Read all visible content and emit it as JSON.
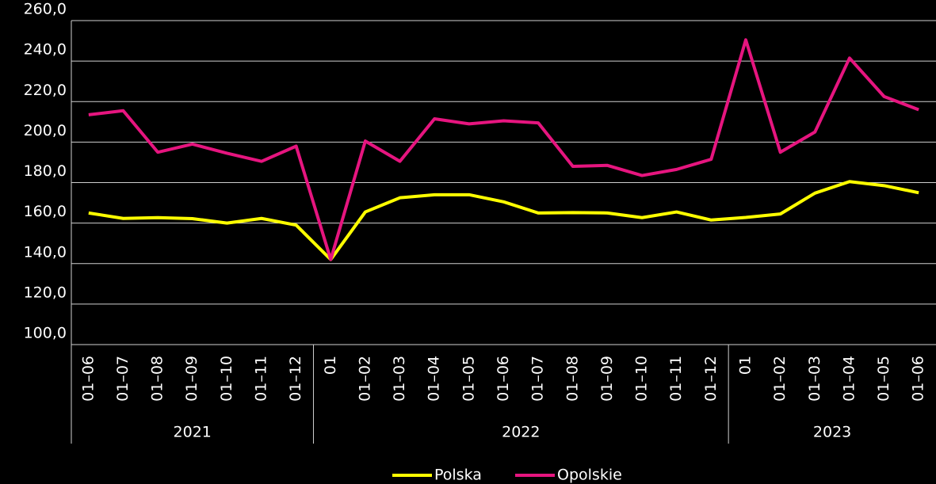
{
  "chart_data": {
    "type": "line",
    "category_groups": [
      {
        "label": "2021",
        "categories": [
          "01–06",
          "01–07",
          "01–08",
          "01–09",
          "01–10",
          "01–11",
          "01–12"
        ]
      },
      {
        "label": "2022",
        "categories": [
          "01",
          "01–02",
          "01–03",
          "01–04",
          "01–05",
          "01–06",
          "01–07",
          "01–08",
          "01–09",
          "01–10",
          "01–11",
          "01–12"
        ]
      },
      {
        "label": "2023",
        "categories": [
          "01",
          "01–02",
          "01–03",
          "01–04",
          "01–05",
          "01–06"
        ]
      }
    ],
    "series": [
      {
        "name": "Polska",
        "color": "#ffff00",
        "values": [
          165,
          162.3,
          162.7,
          162.2,
          160,
          162.3,
          159,
          142,
          165.5,
          172.5,
          174,
          174,
          170.5,
          165,
          165.2,
          165,
          162.7,
          165.5,
          161.5,
          162.8,
          164.5,
          174.8,
          180.5,
          178.5,
          175
        ]
      },
      {
        "name": "Opolskie",
        "color": "#e6157f",
        "values": [
          213.5,
          215.5,
          195,
          199,
          194.5,
          190.5,
          198,
          142,
          200.5,
          190.5,
          211.5,
          209,
          210.5,
          209.5,
          188,
          188.5,
          183.5,
          186.5,
          191.5,
          250.5,
          195,
          205,
          241.5,
          222.5,
          216
        ]
      }
    ],
    "ylim": [
      100,
      260
    ],
    "yticks": [
      {
        "value": 100,
        "label": "100,0"
      },
      {
        "value": 120,
        "label": "120,0"
      },
      {
        "value": 140,
        "label": "140,0"
      },
      {
        "value": 160,
        "label": "160,0"
      },
      {
        "value": 180,
        "label": "180,0"
      },
      {
        "value": 200,
        "label": "200,0"
      },
      {
        "value": 220,
        "label": "220,0"
      },
      {
        "value": 240,
        "label": "240,0"
      },
      {
        "value": 260,
        "label": "260,0"
      }
    ],
    "grid": true,
    "legend": "bottom"
  }
}
